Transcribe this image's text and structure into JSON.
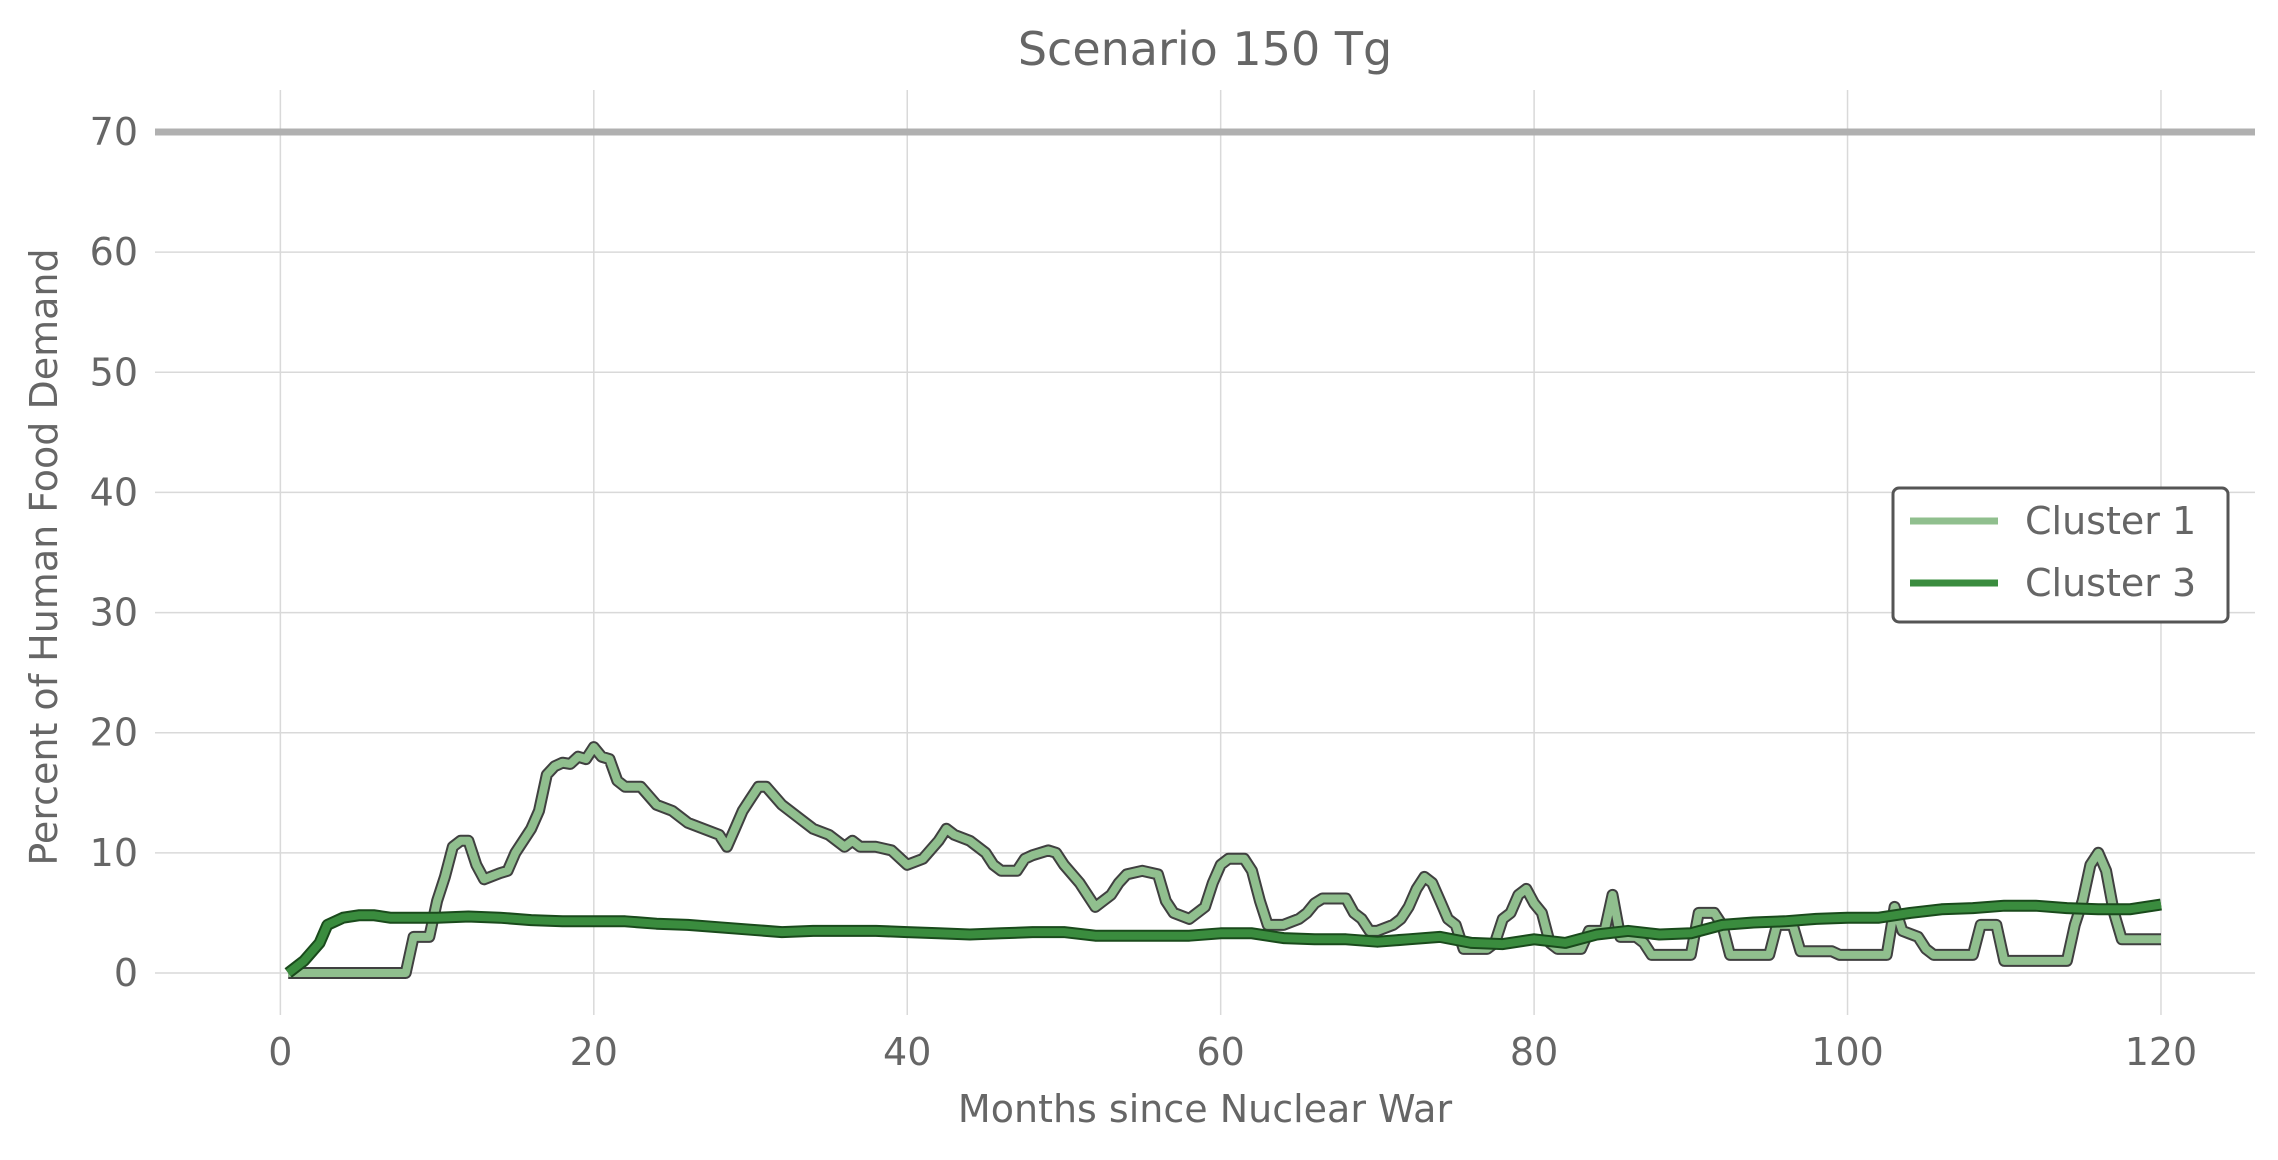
{
  "chart_data": {
    "type": "line",
    "title": "Scenario 150 Tg",
    "xlabel": "Months since Nuclear War",
    "ylabel": "Percent of Human Food Demand",
    "xlim": [
      -8,
      126
    ],
    "ylim": [
      -3.5,
      73.5
    ],
    "xticks": [
      0,
      20,
      40,
      60,
      80,
      100,
      120
    ],
    "yticks": [
      0,
      10,
      20,
      30,
      40,
      50,
      60,
      70
    ],
    "grid": true,
    "legend_position": "center-right",
    "reference_line": {
      "y": 70,
      "color": "#b0b0b0"
    },
    "series": [
      {
        "name": "Cluster 1",
        "color": "#90bf8e",
        "edge_color": "#404040",
        "points": [
          [
            0.5,
            0
          ],
          [
            1,
            0
          ],
          [
            4,
            0
          ],
          [
            7.5,
            0
          ],
          [
            8,
            0
          ],
          [
            8.5,
            3
          ],
          [
            9.5,
            3
          ],
          [
            10,
            6
          ],
          [
            10.5,
            8
          ],
          [
            11,
            10.5
          ],
          [
            11.5,
            11
          ],
          [
            12,
            11
          ],
          [
            12.5,
            9
          ],
          [
            13,
            7.8
          ],
          [
            14,
            8.3
          ],
          [
            14.5,
            8.5
          ],
          [
            15,
            10
          ],
          [
            16,
            12
          ],
          [
            16.5,
            13.5
          ],
          [
            17,
            16.5
          ],
          [
            17.5,
            17.2
          ],
          [
            18,
            17.5
          ],
          [
            18.5,
            17.4
          ],
          [
            19,
            18
          ],
          [
            19.5,
            17.8
          ],
          [
            20,
            18.8
          ],
          [
            20.5,
            18
          ],
          [
            21,
            17.8
          ],
          [
            21.5,
            16
          ],
          [
            22,
            15.5
          ],
          [
            23,
            15.5
          ],
          [
            24,
            14
          ],
          [
            25,
            13.5
          ],
          [
            26,
            12.5
          ],
          [
            27,
            12
          ],
          [
            28,
            11.5
          ],
          [
            28.5,
            10.5
          ],
          [
            29,
            12
          ],
          [
            29.5,
            13.5
          ],
          [
            30,
            14.5
          ],
          [
            30.5,
            15.5
          ],
          [
            31,
            15.5
          ],
          [
            32,
            14
          ],
          [
            33,
            13
          ],
          [
            34,
            12
          ],
          [
            35,
            11.5
          ],
          [
            36,
            10.5
          ],
          [
            36.5,
            11
          ],
          [
            37,
            10.5
          ],
          [
            38,
            10.5
          ],
          [
            39,
            10.2
          ],
          [
            40,
            9
          ],
          [
            41,
            9.5
          ],
          [
            42,
            11
          ],
          [
            42.5,
            12
          ],
          [
            43,
            11.5
          ],
          [
            44,
            11
          ],
          [
            45,
            10
          ],
          [
            45.5,
            9
          ],
          [
            46,
            8.5
          ],
          [
            47,
            8.5
          ],
          [
            47.5,
            9.5
          ],
          [
            48,
            9.8
          ],
          [
            49,
            10.2
          ],
          [
            49.5,
            10
          ],
          [
            50,
            9
          ],
          [
            51,
            7.5
          ],
          [
            52,
            5.5
          ],
          [
            53,
            6.5
          ],
          [
            53.5,
            7.5
          ],
          [
            54,
            8.2
          ],
          [
            55,
            8.5
          ],
          [
            56,
            8.2
          ],
          [
            56.5,
            6
          ],
          [
            57,
            5
          ],
          [
            58,
            4.5
          ],
          [
            59,
            5.5
          ],
          [
            59.5,
            7.5
          ],
          [
            60,
            9
          ],
          [
            60.5,
            9.5
          ],
          [
            61.5,
            9.5
          ],
          [
            62,
            8.5
          ],
          [
            62.5,
            6
          ],
          [
            63,
            4
          ],
          [
            64,
            4
          ],
          [
            65,
            4.5
          ],
          [
            65.5,
            5
          ],
          [
            66,
            5.8
          ],
          [
            66.5,
            6.2
          ],
          [
            68,
            6.2
          ],
          [
            68.5,
            5
          ],
          [
            69,
            4.5
          ],
          [
            69.5,
            3.5
          ],
          [
            70,
            3.5
          ],
          [
            71,
            4
          ],
          [
            71.5,
            4.5
          ],
          [
            72,
            5.5
          ],
          [
            72.5,
            7
          ],
          [
            73,
            8
          ],
          [
            73.5,
            7.5
          ],
          [
            74,
            6
          ],
          [
            74.5,
            4.5
          ],
          [
            75,
            4
          ],
          [
            75.5,
            2
          ],
          [
            77,
            2
          ],
          [
            77.5,
            2.5
          ],
          [
            78,
            4.5
          ],
          [
            78.5,
            5
          ],
          [
            79,
            6.5
          ],
          [
            79.5,
            7
          ],
          [
            80,
            5.8
          ],
          [
            80.5,
            5
          ],
          [
            81,
            2.5
          ],
          [
            81.5,
            2
          ],
          [
            83,
            2
          ],
          [
            83.5,
            3.5
          ],
          [
            84.5,
            3.5
          ],
          [
            85,
            6.5
          ],
          [
            85.5,
            3
          ],
          [
            86.5,
            3
          ],
          [
            87,
            2.5
          ],
          [
            87.5,
            1.5
          ],
          [
            90,
            1.5
          ],
          [
            90.5,
            5
          ],
          [
            91.5,
            5
          ],
          [
            92,
            4
          ],
          [
            92.5,
            1.5
          ],
          [
            95,
            1.5
          ],
          [
            95.5,
            4
          ],
          [
            96.5,
            4
          ],
          [
            97,
            1.8
          ],
          [
            99,
            1.8
          ],
          [
            99.5,
            1.5
          ],
          [
            102.5,
            1.5
          ],
          [
            103,
            5.5
          ],
          [
            103.5,
            3.5
          ],
          [
            104.5,
            3
          ],
          [
            105,
            2
          ],
          [
            105.5,
            1.5
          ],
          [
            108,
            1.5
          ],
          [
            108.5,
            4
          ],
          [
            109.5,
            4
          ],
          [
            110,
            1
          ],
          [
            114,
            1
          ],
          [
            114.5,
            4
          ],
          [
            115,
            6
          ],
          [
            115.5,
            9
          ],
          [
            116,
            10
          ],
          [
            116.5,
            8.5
          ],
          [
            117,
            5
          ],
          [
            117.5,
            2.8
          ],
          [
            120,
            2.8
          ]
        ]
      },
      {
        "name": "Cluster 3",
        "color": "#3a8c3e",
        "edge_color": "#1a4a1c",
        "points": [
          [
            0.5,
            0
          ],
          [
            1.5,
            1
          ],
          [
            2.5,
            2.5
          ],
          [
            3,
            4
          ],
          [
            4,
            4.6
          ],
          [
            5,
            4.8
          ],
          [
            6,
            4.8
          ],
          [
            7,
            4.6
          ],
          [
            8,
            4.6
          ],
          [
            10,
            4.6
          ],
          [
            12,
            4.7
          ],
          [
            14,
            4.6
          ],
          [
            16,
            4.4
          ],
          [
            18,
            4.3
          ],
          [
            20,
            4.3
          ],
          [
            22,
            4.3
          ],
          [
            24,
            4.1
          ],
          [
            26,
            4
          ],
          [
            28,
            3.8
          ],
          [
            30,
            3.6
          ],
          [
            32,
            3.4
          ],
          [
            34,
            3.5
          ],
          [
            36,
            3.5
          ],
          [
            38,
            3.5
          ],
          [
            40,
            3.4
          ],
          [
            42,
            3.3
          ],
          [
            44,
            3.2
          ],
          [
            46,
            3.3
          ],
          [
            48,
            3.4
          ],
          [
            50,
            3.4
          ],
          [
            52,
            3.1
          ],
          [
            54,
            3.1
          ],
          [
            56,
            3.1
          ],
          [
            58,
            3.1
          ],
          [
            60,
            3.3
          ],
          [
            62,
            3.3
          ],
          [
            64,
            2.9
          ],
          [
            66,
            2.8
          ],
          [
            68,
            2.8
          ],
          [
            70,
            2.6
          ],
          [
            72,
            2.8
          ],
          [
            74,
            3
          ],
          [
            76,
            2.5
          ],
          [
            78,
            2.4
          ],
          [
            80,
            2.8
          ],
          [
            82,
            2.5
          ],
          [
            84,
            3.2
          ],
          [
            86,
            3.5
          ],
          [
            88,
            3.2
          ],
          [
            90,
            3.3
          ],
          [
            92,
            4
          ],
          [
            94,
            4.2
          ],
          [
            96,
            4.3
          ],
          [
            98,
            4.5
          ],
          [
            100,
            4.6
          ],
          [
            102,
            4.6
          ],
          [
            104,
            5
          ],
          [
            106,
            5.3
          ],
          [
            108,
            5.4
          ],
          [
            110,
            5.6
          ],
          [
            112,
            5.6
          ],
          [
            114,
            5.4
          ],
          [
            116,
            5.3
          ],
          [
            118,
            5.3
          ],
          [
            120,
            5.7
          ]
        ]
      }
    ]
  }
}
